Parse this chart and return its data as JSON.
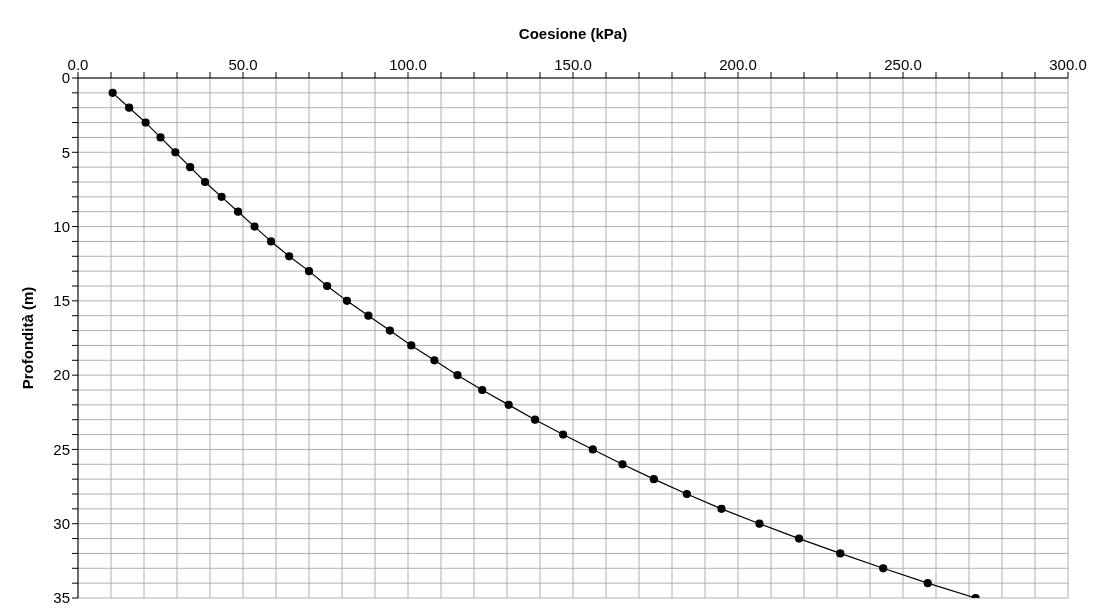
{
  "chart_data": {
    "type": "line",
    "xlabel": "Coesione (kPa)",
    "ylabel": "Profondità (m)",
    "xlim": [
      0,
      300
    ],
    "xticks": [
      {
        "value": 0,
        "label": "0.0"
      },
      {
        "value": 10,
        "label": null
      },
      {
        "value": 20,
        "label": null
      },
      {
        "value": 30,
        "label": null
      },
      {
        "value": 40,
        "label": null
      },
      {
        "value": 50,
        "label": "50.0"
      },
      {
        "value": 60,
        "label": null
      },
      {
        "value": 70,
        "label": null
      },
      {
        "value": 80,
        "label": null
      },
      {
        "value": 90,
        "label": null
      },
      {
        "value": 100,
        "label": "100.0"
      },
      {
        "value": 110,
        "label": null
      },
      {
        "value": 120,
        "label": null
      },
      {
        "value": 130,
        "label": null
      },
      {
        "value": 140,
        "label": null
      },
      {
        "value": 150,
        "label": "150.0"
      },
      {
        "value": 160,
        "label": null
      },
      {
        "value": 170,
        "label": null
      },
      {
        "value": 180,
        "label": null
      },
      {
        "value": 190,
        "label": null
      },
      {
        "value": 200,
        "label": "200.0"
      },
      {
        "value": 210,
        "label": null
      },
      {
        "value": 220,
        "label": null
      },
      {
        "value": 230,
        "label": null
      },
      {
        "value": 240,
        "label": null
      },
      {
        "value": 250,
        "label": "250.0"
      },
      {
        "value": 260,
        "label": null
      },
      {
        "value": 270,
        "label": null
      },
      {
        "value": 280,
        "label": null
      },
      {
        "value": 290,
        "label": null
      },
      {
        "value": 300,
        "label": "300.0"
      }
    ],
    "ylim": [
      35,
      0
    ],
    "yticks": [
      0,
      {
        "value": 1,
        "label": null
      },
      {
        "value": 2,
        "label": null
      },
      {
        "value": 3,
        "label": null
      },
      {
        "value": 4,
        "label": null
      },
      5,
      {
        "value": 6,
        "label": null
      },
      {
        "value": 7,
        "label": null
      },
      {
        "value": 8,
        "label": null
      },
      {
        "value": 9,
        "label": null
      },
      10,
      {
        "value": 11,
        "label": null
      },
      {
        "value": 12,
        "label": null
      },
      {
        "value": 13,
        "label": null
      },
      {
        "value": 14,
        "label": null
      },
      15,
      {
        "value": 16,
        "label": null
      },
      {
        "value": 17,
        "label": null
      },
      {
        "value": 18,
        "label": null
      },
      {
        "value": 19,
        "label": null
      },
      20,
      {
        "value": 21,
        "label": null
      },
      {
        "value": 22,
        "label": null
      },
      {
        "value": 23,
        "label": null
      },
      {
        "value": 24,
        "label": null
      },
      25,
      {
        "value": 26,
        "label": null
      },
      {
        "value": 27,
        "label": null
      },
      {
        "value": 28,
        "label": null
      },
      {
        "value": 29,
        "label": null
      },
      30,
      {
        "value": 31,
        "label": null
      },
      {
        "value": 32,
        "label": null
      },
      {
        "value": 33,
        "label": null
      },
      {
        "value": 34,
        "label": null
      },
      35
    ],
    "grid": true,
    "marker": "circle",
    "line_style": "solid",
    "series": [
      {
        "color": "#000000",
        "x": [
          10.5,
          15.5,
          20.5,
          25,
          29.5,
          34,
          38.5,
          43.5,
          48.5,
          53.5,
          58.5,
          64,
          70,
          75.5,
          81.5,
          88,
          94.5,
          101,
          108,
          115,
          122.5,
          130.5,
          138.5,
          147,
          156,
          165,
          174.5,
          184.5,
          195,
          206.5,
          218.5,
          231,
          244,
          257.5,
          272
        ],
        "values": [
          1,
          2,
          3,
          4,
          5,
          6,
          7,
          8,
          9,
          10,
          11,
          12,
          13,
          14,
          15,
          16,
          17,
          18,
          19,
          20,
          21,
          22,
          23,
          24,
          25,
          26,
          27,
          28,
          29,
          30,
          31,
          32,
          33,
          34,
          35
        ]
      }
    ]
  }
}
